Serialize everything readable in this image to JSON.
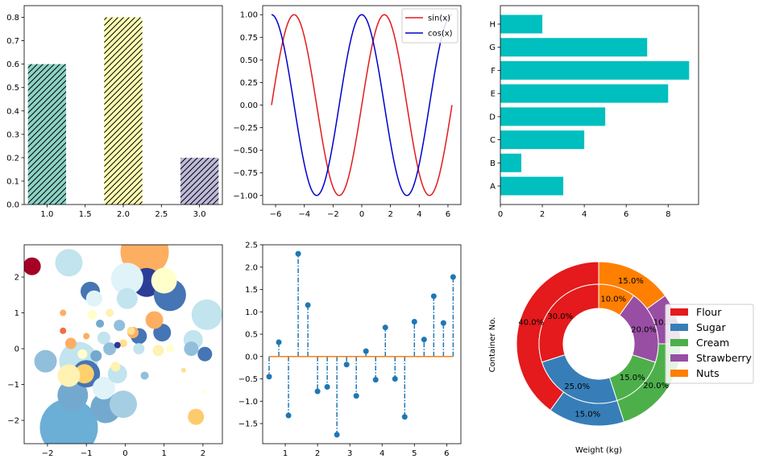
{
  "chart_data": [
    {
      "type": "bar",
      "x": [
        1.0,
        2.0,
        3.0
      ],
      "values": [
        0.6,
        0.8,
        0.2
      ],
      "colors": [
        "#8dd3c7",
        "#ffffb3",
        "#bebada"
      ],
      "hatch": "///",
      "xlim": [
        0.7,
        3.3
      ],
      "ylim": [
        0,
        0.85
      ],
      "xticks": [
        "1.0",
        "1.5",
        "2.0",
        "2.5",
        "3.0"
      ],
      "yticks": [
        "0.0",
        "0.1",
        "0.2",
        "0.3",
        "0.4",
        "0.5",
        "0.6",
        "0.7",
        "0.8"
      ]
    },
    {
      "type": "line",
      "x_range": [
        -6.2832,
        6.2832
      ],
      "series": [
        {
          "name": "sin(x)",
          "function": "sin",
          "color": "#e31a1c"
        },
        {
          "name": "cos(x)",
          "function": "cos",
          "color": "#0000cc"
        }
      ],
      "xlim": [
        -6.9,
        6.9
      ],
      "ylim": [
        -1.1,
        1.1
      ],
      "xticks": [
        "−6",
        "−4",
        "−2",
        "0",
        "2",
        "4",
        "6"
      ],
      "yticks": [
        "−1.00",
        "−0.75",
        "−0.50",
        "−0.25",
        "0.00",
        "0.25",
        "0.50",
        "0.75",
        "1.00"
      ],
      "legend": {
        "placement": "top-right",
        "entries": [
          "sin(x)",
          "cos(x)"
        ]
      }
    },
    {
      "type": "bar",
      "orientation": "horizontal",
      "categories": [
        "A",
        "B",
        "C",
        "D",
        "E",
        "F",
        "G",
        "H"
      ],
      "values": [
        3,
        1,
        4,
        5,
        8,
        9,
        7,
        2
      ],
      "color": "#00bfbf",
      "xlim": [
        0,
        9.45
      ],
      "xticks": [
        "0",
        "2",
        "4",
        "6",
        "8"
      ]
    },
    {
      "type": "scatter",
      "xlim": [
        -2.6,
        2.5
      ],
      "ylim": [
        -2.65,
        2.9
      ],
      "xticks": [
        "−2",
        "−1",
        "0",
        "1",
        "2"
      ],
      "yticks": [
        "−2",
        "−1",
        "0",
        "1",
        "2"
      ],
      "points": [
        {
          "x": 0.5,
          "y": 2.7,
          "r": 30,
          "c": "#fdae61"
        },
        {
          "x": -1.45,
          "y": -2.2,
          "r": 36,
          "c": "#6baed6"
        },
        {
          "x": 0.55,
          "y": 1.85,
          "r": 18,
          "c": "#2c3d97"
        },
        {
          "x": 1.15,
          "y": 1.5,
          "r": 20,
          "c": "#4575b4"
        },
        {
          "x": 0.05,
          "y": 1.95,
          "r": 20,
          "c": "#e0f3f8"
        },
        {
          "x": 1.0,
          "y": 1.9,
          "r": 16,
          "c": "#ffffcc"
        },
        {
          "x": -1.45,
          "y": 2.4,
          "r": 17,
          "c": "#c2e4ee"
        },
        {
          "x": -2.4,
          "y": 2.3,
          "r": 11,
          "c": "#a50026"
        },
        {
          "x": 2.1,
          "y": 0.95,
          "r": 19,
          "c": "#c2e4ee"
        },
        {
          "x": -0.9,
          "y": 1.6,
          "r": 12,
          "c": "#4575b4"
        },
        {
          "x": -0.8,
          "y": 1.4,
          "r": 10,
          "c": "#e0f3f8"
        },
        {
          "x": 0.05,
          "y": 1.4,
          "r": 13,
          "c": "#c2e4ee"
        },
        {
          "x": -1.35,
          "y": -1.3,
          "r": 19,
          "c": "#74a9cf"
        },
        {
          "x": -1.2,
          "y": -0.35,
          "r": 24,
          "c": "#c2e4ee"
        },
        {
          "x": -0.5,
          "y": -1.65,
          "r": 19,
          "c": "#74a9cf"
        },
        {
          "x": -0.05,
          "y": -1.55,
          "r": 17,
          "c": "#a6cee3"
        },
        {
          "x": -2.05,
          "y": -0.35,
          "r": 14,
          "c": "#91bfdb"
        },
        {
          "x": -1.0,
          "y": -0.7,
          "r": 17,
          "c": "#4575b4"
        },
        {
          "x": -0.55,
          "y": -1.1,
          "r": 14,
          "c": "#e0f3f8"
        },
        {
          "x": -1.05,
          "y": -0.7,
          "r": 12,
          "c": "#ffd06b"
        },
        {
          "x": 0.35,
          "y": 0.35,
          "r": 10,
          "c": "#4575b4"
        },
        {
          "x": 0.95,
          "y": 0.45,
          "r": 11,
          "c": "#4575b4"
        },
        {
          "x": 0.75,
          "y": 0.8,
          "r": 11,
          "c": "#fdae61"
        },
        {
          "x": -1.45,
          "y": -0.75,
          "r": 14,
          "c": "#fff2b2"
        },
        {
          "x": -0.2,
          "y": -0.7,
          "r": 12,
          "c": "#c2e4ee"
        },
        {
          "x": 1.75,
          "y": 0.25,
          "r": 12,
          "c": "#c2e4ee"
        },
        {
          "x": 2.05,
          "y": -0.15,
          "r": 9,
          "c": "#4575b4"
        },
        {
          "x": 1.7,
          "y": 0.0,
          "r": 9,
          "c": "#91bfdb"
        },
        {
          "x": 1.82,
          "y": -1.9,
          "r": 10,
          "c": "#fdcb6e"
        },
        {
          "x": -0.55,
          "y": 0.3,
          "r": 8,
          "c": "#c2e4ee"
        },
        {
          "x": -0.15,
          "y": 0.65,
          "r": 7,
          "c": "#91bfdb"
        },
        {
          "x": 0.2,
          "y": 0.45,
          "r": 7,
          "c": "#fdae61"
        },
        {
          "x": -0.75,
          "y": -0.2,
          "r": 7,
          "c": "#74a9cf"
        },
        {
          "x": -0.4,
          "y": 0.0,
          "r": 8,
          "c": "#91bfdb"
        },
        {
          "x": 0.35,
          "y": 0.0,
          "r": 7,
          "c": "#c2e4ee"
        },
        {
          "x": 0.85,
          "y": -0.05,
          "r": 7,
          "c": "#fff2b2"
        },
        {
          "x": -1.1,
          "y": -0.15,
          "r": 6,
          "c": "#ffffcc"
        },
        {
          "x": -0.25,
          "y": -0.5,
          "r": 6,
          "c": "#fff2b2"
        },
        {
          "x": 0.5,
          "y": -0.75,
          "r": 5,
          "c": "#91bfdb"
        },
        {
          "x": -0.65,
          "y": 0.7,
          "r": 5,
          "c": "#74a9cf"
        },
        {
          "x": -1.6,
          "y": 0.5,
          "r": 4,
          "c": "#f46d43"
        },
        {
          "x": -1.4,
          "y": 0.15,
          "r": 7,
          "c": "#fdae61"
        },
        {
          "x": -0.85,
          "y": 0.95,
          "r": 6,
          "c": "#ffffcc"
        },
        {
          "x": 0.15,
          "y": 0.5,
          "r": 5,
          "c": "#fee090"
        },
        {
          "x": -0.05,
          "y": 0.15,
          "r": 5,
          "c": "#fee090"
        },
        {
          "x": -0.2,
          "y": 0.1,
          "r": 4,
          "c": "#313695"
        },
        {
          "x": -1.6,
          "y": 1.0,
          "r": 4,
          "c": "#fdae61"
        },
        {
          "x": -1.0,
          "y": 0.35,
          "r": 4,
          "c": "#fdae61"
        },
        {
          "x": -0.4,
          "y": 1.0,
          "r": 5,
          "c": "#fff2b2"
        },
        {
          "x": 1.15,
          "y": 0.0,
          "r": 5,
          "c": "#ffffcc"
        },
        {
          "x": 1.5,
          "y": -0.6,
          "r": 3,
          "c": "#fee090"
        },
        {
          "x": 2.05,
          "y": -1.2,
          "r": 2,
          "c": "#ffffcc"
        }
      ]
    },
    {
      "type": "stem",
      "x": [
        0.5,
        0.8,
        1.1,
        1.4,
        1.7,
        2.0,
        2.3,
        2.6,
        2.9,
        3.2,
        3.5,
        3.8,
        4.1,
        4.4,
        4.7,
        5.0,
        5.3,
        5.6,
        5.9,
        6.2
      ],
      "values": [
        -0.45,
        0.32,
        -1.32,
        2.3,
        1.15,
        -0.78,
        -0.68,
        -1.75,
        -0.18,
        -0.88,
        0.12,
        -0.52,
        0.65,
        -0.5,
        -1.35,
        0.78,
        0.38,
        1.35,
        0.75,
        1.78
      ],
      "xlim": [
        0.3,
        6.44
      ],
      "ylim": [
        -1.95,
        2.5
      ],
      "xticks": [
        "1",
        "2",
        "3",
        "4",
        "5",
        "6"
      ],
      "yticks": [
        "−1.5",
        "−1.0",
        "−0.5",
        "0.0",
        "0.5",
        "1.0",
        "1.5",
        "2.0",
        "2.5"
      ],
      "line_color": "#1f77b4",
      "baseline_color": "#ff7f0e"
    },
    {
      "type": "pie",
      "style": "nested donut",
      "xlabel": "Weight (kg)",
      "ylabel": "Container No.",
      "categories": [
        "Flour",
        "Sugar",
        "Cream",
        "Strawberry",
        "Nuts"
      ],
      "colors": [
        "#e41a1c",
        "#377eb8",
        "#4daf4a",
        "#984ea3",
        "#ff7f00"
      ],
      "series": [
        {
          "ring": "outer",
          "values": [
            40.0,
            15.0,
            20.0,
            10.0,
            15.0
          ],
          "labels": [
            "40.0%",
            "15.0%",
            "20.0%",
            "10.0%",
            "15.0%"
          ]
        },
        {
          "ring": "inner",
          "values": [
            30.0,
            25.0,
            15.0,
            20.0,
            10.0
          ],
          "labels": [
            "30.0%",
            "25.0%",
            "15.0%",
            "20.0%",
            "10.0%"
          ]
        }
      ],
      "legend": {
        "placement": "right",
        "entries": [
          "Flour",
          "Sugar",
          "Cream",
          "Strawberry",
          "Nuts"
        ]
      }
    }
  ]
}
